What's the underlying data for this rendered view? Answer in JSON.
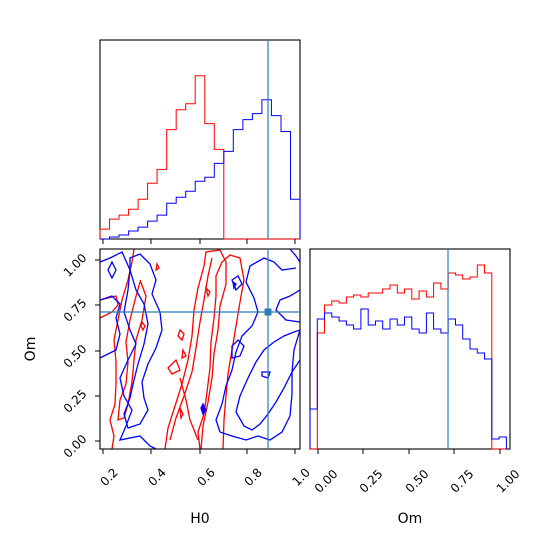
{
  "colors": {
    "series_red": "#ff0000",
    "series_blue": "#0000ff",
    "truth": "#2b7bb9"
  },
  "chart_data": {
    "type": "corner",
    "parameters": [
      "H0",
      "Om"
    ],
    "truth": {
      "H0": 0.88,
      "Om": 0.71
    },
    "x_label": "H0",
    "y_label": "Om",
    "x_label_right": "Om",
    "h0_ticks": [
      "0.2",
      "0.4",
      "0.6",
      "0.8",
      "1.0"
    ],
    "om_ticks": [
      "0.00",
      "0.25",
      "0.50",
      "0.75",
      "1.00"
    ],
    "h0_range": [
      0.18,
      1.02
    ],
    "om_range": [
      -0.04,
      1.06
    ],
    "panels": [
      {
        "name": "H0 marginal histogram",
        "type": "histogram",
        "bin_edges": [
          0.18,
          0.22,
          0.26,
          0.3,
          0.34,
          0.38,
          0.42,
          0.46,
          0.5,
          0.54,
          0.58,
          0.62,
          0.66,
          0.7,
          0.74,
          0.78,
          0.82,
          0.86,
          0.9,
          0.94,
          0.98,
          1.02
        ],
        "series": [
          {
            "color": "red",
            "counts": [
              0.05,
              0.1,
              0.12,
              0.15,
              0.2,
              0.28,
              0.35,
              0.55,
              0.65,
              0.68,
              0.82,
              0.58,
              0.45,
              0.0,
              0.0,
              0.0,
              0.0,
              0.0,
              0.0,
              0.0,
              0.0
            ]
          },
          {
            "color": "blue",
            "counts": [
              0.0,
              0.01,
              0.02,
              0.04,
              0.06,
              0.09,
              0.12,
              0.18,
              0.21,
              0.24,
              0.29,
              0.31,
              0.38,
              0.44,
              0.55,
              0.6,
              0.63,
              0.7,
              0.62,
              0.54,
              0.2
            ]
          }
        ]
      },
      {
        "name": "Om marginal histogram",
        "type": "histogram",
        "bin_edges": [
          -0.04,
          0.0,
          0.04,
          0.08,
          0.12,
          0.16,
          0.2,
          0.24,
          0.28,
          0.32,
          0.36,
          0.4,
          0.44,
          0.48,
          0.52,
          0.56,
          0.6,
          0.64,
          0.68,
          0.72,
          0.76,
          0.8,
          0.84,
          0.88,
          0.92,
          0.96,
          1.0,
          1.04
        ],
        "series": [
          {
            "color": "red",
            "counts": [
              0.0,
              0.58,
              0.72,
              0.74,
              0.73,
              0.76,
              0.77,
              0.76,
              0.78,
              0.78,
              0.8,
              0.82,
              0.78,
              0.8,
              0.75,
              0.79,
              0.76,
              0.83,
              0.8,
              0.88,
              0.87,
              0.85,
              0.86,
              0.92,
              0.88,
              0.0,
              0.0
            ]
          },
          {
            "color": "blue",
            "counts": [
              0.2,
              0.65,
              0.68,
              0.66,
              0.64,
              0.62,
              0.6,
              0.7,
              0.62,
              0.64,
              0.6,
              0.65,
              0.62,
              0.66,
              0.6,
              0.58,
              0.68,
              0.6,
              0.58,
              0.65,
              0.62,
              0.55,
              0.5,
              0.48,
              0.45,
              0.05,
              0.06
            ]
          }
        ]
      }
    ]
  }
}
